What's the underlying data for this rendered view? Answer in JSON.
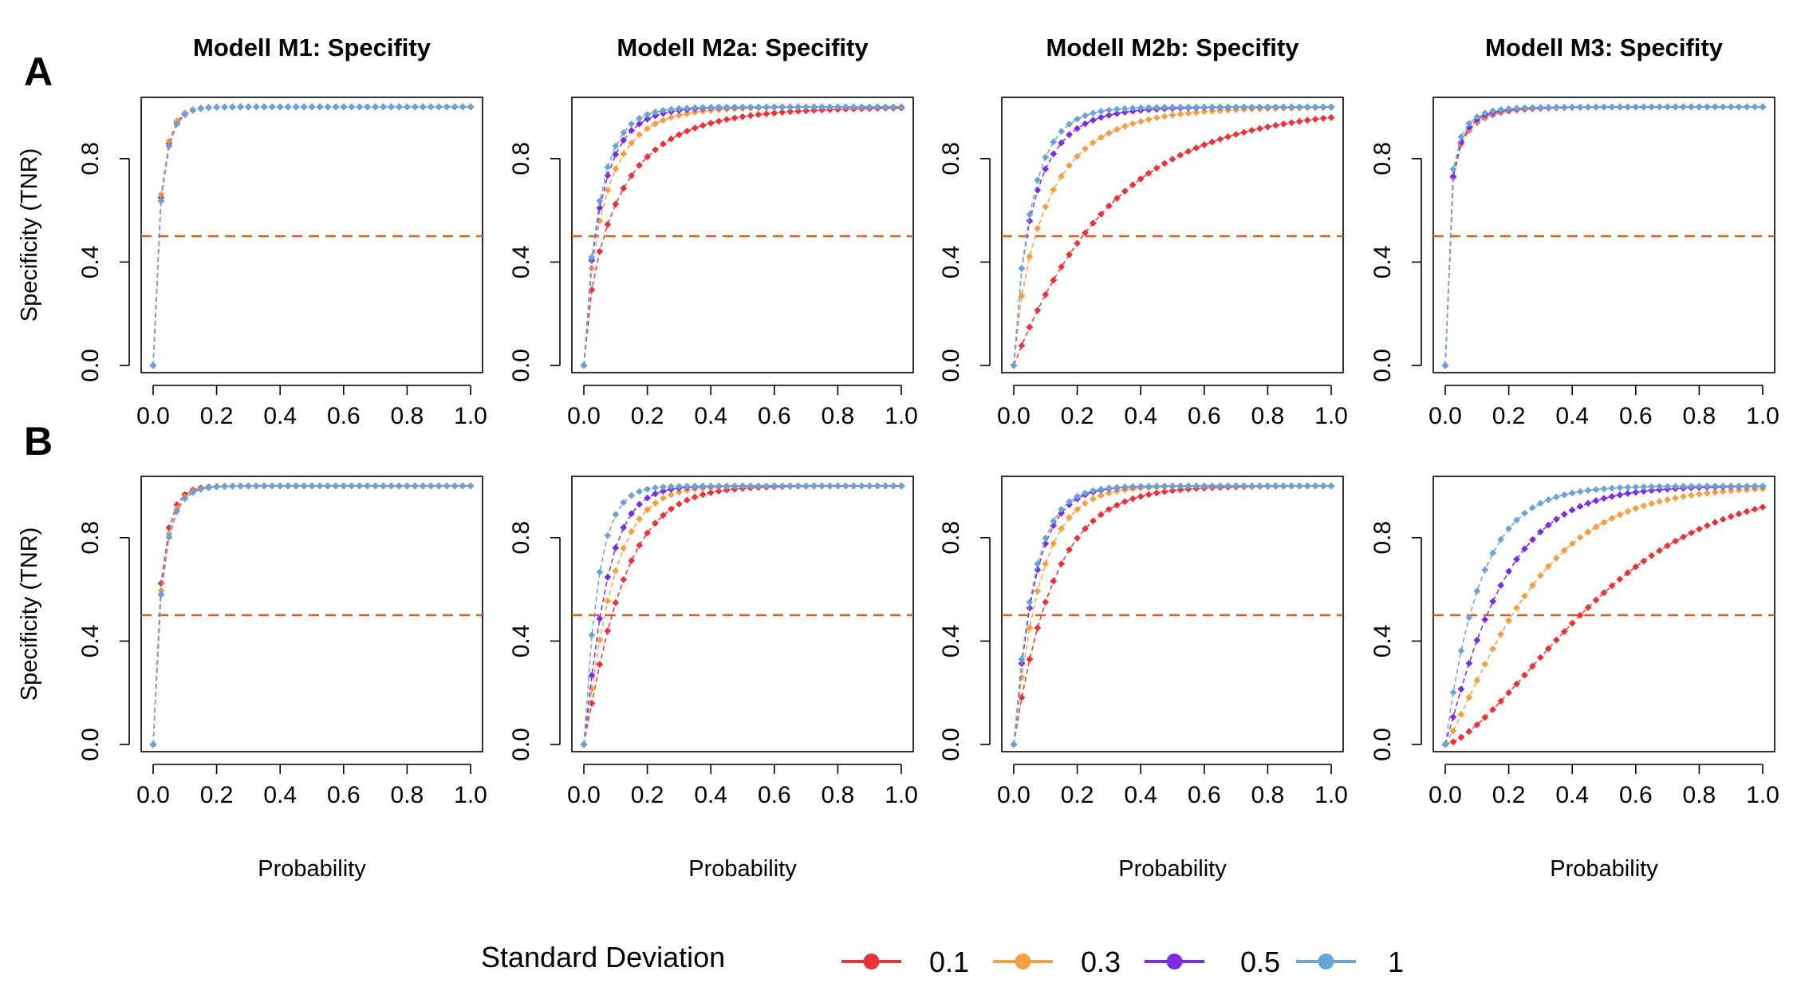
{
  "figure": {
    "row_labels": [
      "A",
      "B"
    ],
    "x_label": "Probability",
    "y_label": "Specificity (TNR)",
    "legend": {
      "title": "Standard Deviation",
      "entries": [
        {
          "label": "0.1",
          "color": "#e8333b"
        },
        {
          "label": "0.3",
          "color": "#f59f45"
        },
        {
          "label": "0.5",
          "color": "#7b2ee0"
        },
        {
          "label": "1",
          "color": "#6aa3d6"
        }
      ]
    }
  },
  "chart_data": [
    {
      "type": "scatter",
      "row": "A",
      "title": "Modell M1: Specifity",
      "xlabel": "",
      "ylabel": "Specificity (TNR)",
      "xlim": [
        0,
        1
      ],
      "ylim": [
        0,
        1
      ],
      "x_ticks": [
        "0.0",
        "0.2",
        "0.4",
        "0.6",
        "0.8",
        "1.0"
      ],
      "y_ticks": [
        "0.0",
        "0.4",
        "0.8"
      ],
      "reference_line_y": 0.5,
      "grid": false,
      "point_step": 0.025,
      "series": [
        {
          "name": "0.1",
          "color": "#e8333b",
          "k": 29,
          "p": 0.9
        },
        {
          "name": "0.3",
          "color": "#f59f45",
          "k": 30,
          "p": 0.9
        },
        {
          "name": "0.5",
          "color": "#7b2ee0",
          "k": 28,
          "p": 0.9
        },
        {
          "name": "1",
          "color": "#6aa3d6",
          "k": 28,
          "p": 0.9
        }
      ]
    },
    {
      "type": "scatter",
      "row": "A",
      "title": "Modell M2a: Specifity",
      "xlabel": "",
      "ylabel": "",
      "xlim": [
        0,
        1
      ],
      "ylim": [
        0,
        1
      ],
      "x_ticks": [
        "0.0",
        "0.2",
        "0.4",
        "0.6",
        "0.8",
        "1.0"
      ],
      "y_ticks": [
        "0.0",
        "0.4",
        "0.8"
      ],
      "reference_line_y": 0.5,
      "grid": false,
      "point_step": 0.025,
      "series": [
        {
          "name": "0.1",
          "color": "#e8333b",
          "k": 5.5,
          "p": 0.75
        },
        {
          "name": "0.3",
          "color": "#f59f45",
          "k": 9,
          "p": 0.8
        },
        {
          "name": "0.5",
          "color": "#7b2ee0",
          "k": 12,
          "p": 0.85
        },
        {
          "name": "1",
          "color": "#6aa3d6",
          "k": 15,
          "p": 0.9
        }
      ]
    },
    {
      "type": "scatter",
      "row": "A",
      "title": "Modell M2b: Specifity",
      "xlabel": "",
      "ylabel": "",
      "xlim": [
        0,
        1
      ],
      "ylim": [
        0,
        1
      ],
      "x_ticks": [
        "0.0",
        "0.2",
        "0.4",
        "0.6",
        "0.8",
        "1.0"
      ],
      "y_ticks": [
        "0.0",
        "0.4",
        "0.8"
      ],
      "reference_line_y": 0.5,
      "grid": false,
      "point_step": 0.025,
      "series": [
        {
          "name": "0.1",
          "color": "#e8333b",
          "k": 3.2,
          "p": 1.0
        },
        {
          "name": "0.3",
          "color": "#f59f45",
          "k": 6,
          "p": 0.8
        },
        {
          "name": "0.5",
          "color": "#7b2ee0",
          "k": 9,
          "p": 0.8
        },
        {
          "name": "1",
          "color": "#6aa3d6",
          "k": 13,
          "p": 0.9
        }
      ]
    },
    {
      "type": "scatter",
      "row": "A",
      "title": "Modell M3: Specifity",
      "xlabel": "",
      "ylabel": "",
      "xlim": [
        0,
        1
      ],
      "ylim": [
        0,
        1
      ],
      "x_ticks": [
        "0.0",
        "0.2",
        "0.4",
        "0.6",
        "0.8",
        "1.0"
      ],
      "y_ticks": [
        "0.0",
        "0.4",
        "0.8"
      ],
      "reference_line_y": 0.5,
      "grid": false,
      "point_step": 0.025,
      "series": [
        {
          "name": "0.1",
          "color": "#e8333b",
          "k": 10,
          "p": 0.55
        },
        {
          "name": "0.3",
          "color": "#f59f45",
          "k": 11,
          "p": 0.58
        },
        {
          "name": "0.5",
          "color": "#7b2ee0",
          "k": 12,
          "p": 0.6
        },
        {
          "name": "1",
          "color": "#6aa3d6",
          "k": 13,
          "p": 0.6
        }
      ]
    },
    {
      "type": "scatter",
      "row": "B",
      "title": "",
      "xlabel": "Probability",
      "ylabel": "Specificity (TNR)",
      "xlim": [
        0,
        1
      ],
      "ylim": [
        0,
        1
      ],
      "x_ticks": [
        "0.0",
        "0.2",
        "0.4",
        "0.6",
        "0.8",
        "1.0"
      ],
      "y_ticks": [
        "0.0",
        "0.4",
        "0.8"
      ],
      "reference_line_y": 0.5,
      "grid": false,
      "point_step": 0.025,
      "series": [
        {
          "name": "0.1",
          "color": "#e8333b",
          "k": 27,
          "p": 0.9
        },
        {
          "name": "0.3",
          "color": "#f59f45",
          "k": 25,
          "p": 0.9
        },
        {
          "name": "0.5",
          "color": "#7b2ee0",
          "k": 24,
          "p": 0.9
        },
        {
          "name": "1",
          "color": "#6aa3d6",
          "k": 24,
          "p": 0.9
        }
      ]
    },
    {
      "type": "scatter",
      "row": "B",
      "title": "",
      "xlabel": "Probability",
      "ylabel": "",
      "xlim": [
        0,
        1
      ],
      "ylim": [
        0,
        1
      ],
      "x_ticks": [
        "0.0",
        "0.2",
        "0.4",
        "0.6",
        "0.8",
        "1.0"
      ],
      "y_ticks": [
        "0.0",
        "0.4",
        "0.8"
      ],
      "reference_line_y": 0.5,
      "grid": false,
      "point_step": 0.025,
      "series": [
        {
          "name": "0.1",
          "color": "#e8333b",
          "k": 10,
          "p": 1.1
        },
        {
          "name": "0.3",
          "color": "#f59f45",
          "k": 14,
          "p": 1.1
        },
        {
          "name": "0.5",
          "color": "#7b2ee0",
          "k": 18,
          "p": 1.1
        },
        {
          "name": "1",
          "color": "#6aa3d6",
          "k": 22,
          "p": 1.0
        }
      ]
    },
    {
      "type": "scatter",
      "row": "B",
      "title": "",
      "xlabel": "Probability",
      "ylabel": "",
      "xlim": [
        0,
        1
      ],
      "ylim": [
        0,
        1
      ],
      "x_ticks": [
        "0.0",
        "0.2",
        "0.4",
        "0.6",
        "0.8",
        "1.0"
      ],
      "y_ticks": [
        "0.0",
        "0.4",
        "0.8"
      ],
      "reference_line_y": 0.5,
      "grid": false,
      "point_step": 0.025,
      "series": [
        {
          "name": "0.1",
          "color": "#e8333b",
          "k": 8,
          "p": 1.0
        },
        {
          "name": "0.3",
          "color": "#f59f45",
          "k": 12,
          "p": 1.0
        },
        {
          "name": "0.5",
          "color": "#7b2ee0",
          "k": 15,
          "p": 1.0
        },
        {
          "name": "1",
          "color": "#6aa3d6",
          "k": 16,
          "p": 1.0
        }
      ]
    },
    {
      "type": "scatter",
      "row": "B",
      "title": "",
      "xlabel": "Probability",
      "ylabel": "",
      "xlim": [
        0,
        1
      ],
      "ylim": [
        0,
        1
      ],
      "x_ticks": [
        "0.0",
        "0.2",
        "0.4",
        "0.6",
        "0.8",
        "1.0"
      ],
      "y_ticks": [
        "0.0",
        "0.4",
        "0.8"
      ],
      "reference_line_y": 0.5,
      "grid": false,
      "point_step": 0.025,
      "series": [
        {
          "name": "0.1",
          "color": "#e8333b",
          "k": 2.5,
          "p": 1.5
        },
        {
          "name": "0.3",
          "color": "#f59f45",
          "k": 4.5,
          "p": 1.2
        },
        {
          "name": "0.5",
          "color": "#7b2ee0",
          "k": 6.5,
          "p": 1.1
        },
        {
          "name": "1",
          "color": "#6aa3d6",
          "k": 9,
          "p": 1.0
        }
      ]
    }
  ]
}
